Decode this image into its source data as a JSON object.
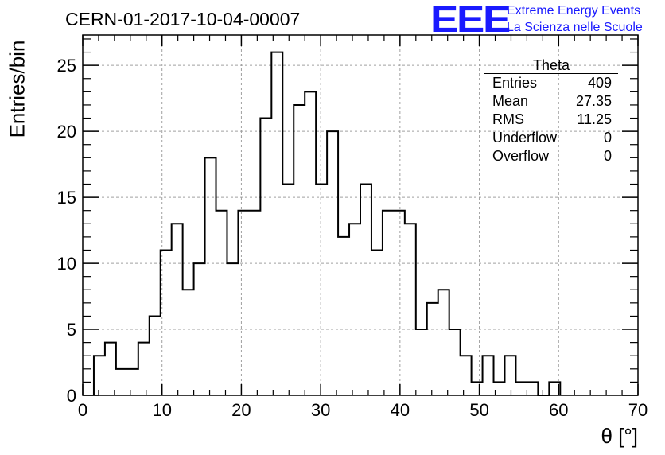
{
  "header": {
    "title": "CERN-01-2017-10-04-00007",
    "logo_text": "EEE",
    "logo_line1": "Extreme Energy Events",
    "logo_line2": "La Scienza nelle Scuole",
    "brand_color": "#1a1aff"
  },
  "stats_box": {
    "title": "Theta",
    "rows": [
      {
        "label": "Entries",
        "value": "409"
      },
      {
        "label": "Mean",
        "value": "27.35"
      },
      {
        "label": "RMS",
        "value": "11.25"
      },
      {
        "label": "Underflow",
        "value": "0"
      },
      {
        "label": "Overflow",
        "value": "0"
      }
    ]
  },
  "chart_data": {
    "type": "bar",
    "style": "step-histogram",
    "xlabel": "θ [°]",
    "ylabel": "Entries/bin",
    "xlim": [
      0,
      70
    ],
    "ylim": [
      0,
      27.3
    ],
    "xticks": [
      0,
      10,
      20,
      30,
      40,
      50,
      60,
      70
    ],
    "yticks": [
      0,
      5,
      10,
      15,
      20,
      25
    ],
    "grid": true,
    "bin_width": 1.4,
    "bin_start": 1.4,
    "values": [
      3,
      4,
      2,
      2,
      4,
      6,
      11,
      13,
      8,
      10,
      18,
      14,
      10,
      14,
      14,
      21,
      26,
      16,
      22,
      23,
      16,
      20,
      12,
      13,
      16,
      11,
      14,
      14,
      13,
      5,
      7,
      8,
      5,
      3,
      1,
      3,
      1,
      3,
      1,
      1,
      0,
      1
    ],
    "line_color": "#000000",
    "grid_color": "#a0a0a0"
  }
}
